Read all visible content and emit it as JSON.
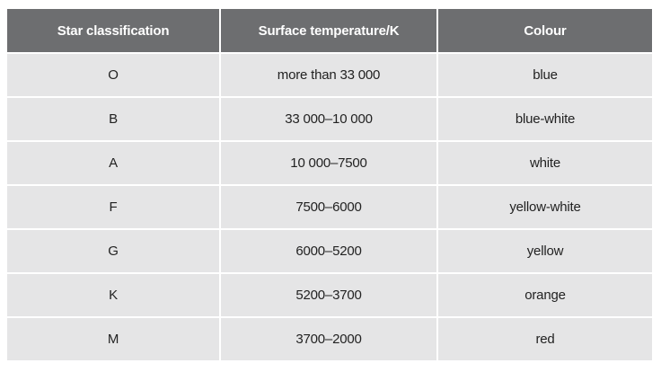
{
  "table": {
    "headers": [
      "Star classification",
      "Surface temperature/K",
      "Colour"
    ],
    "rows": [
      [
        "O",
        "more than 33 000",
        "blue"
      ],
      [
        "B",
        "33 000–10 000",
        "blue-white"
      ],
      [
        "A",
        "10 000–7500",
        "white"
      ],
      [
        "F",
        "7500–6000",
        "yellow-white"
      ],
      [
        "G",
        "6000–5200",
        "yellow"
      ],
      [
        "K",
        "5200–3700",
        "orange"
      ],
      [
        "M",
        "3700–2000",
        "red"
      ]
    ]
  },
  "colors": {
    "header_bg": "#6d6e70",
    "header_text": "#ffffff",
    "cell_bg": "#e5e5e6",
    "cell_text": "#222222"
  }
}
